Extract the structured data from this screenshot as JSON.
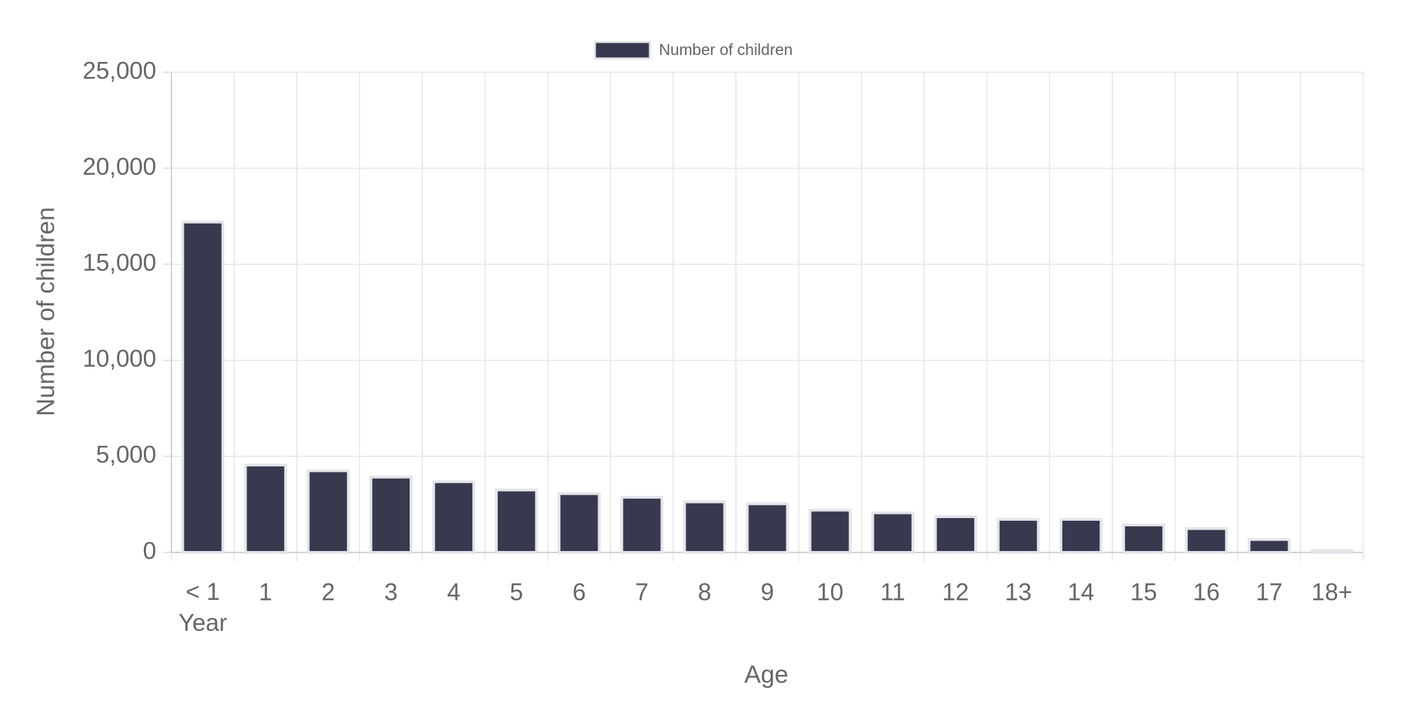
{
  "chart_data": {
    "type": "bar",
    "categories": [
      "< 1 Year",
      "1",
      "2",
      "3",
      "4",
      "5",
      "6",
      "7",
      "8",
      "9",
      "10",
      "11",
      "12",
      "13",
      "14",
      "15",
      "16",
      "17",
      "18+"
    ],
    "series": [
      {
        "name": "Number of children",
        "color": "#373a4f",
        "values": [
          17200,
          4550,
          4250,
          3920,
          3680,
          3250,
          3060,
          2870,
          2630,
          2530,
          2200,
          2060,
          1860,
          1720,
          1720,
          1430,
          1240,
          670,
          100
        ]
      }
    ],
    "x_label": "Age",
    "y_label": "Number of children",
    "ylim": [
      0,
      25000
    ],
    "yticks": [
      0,
      {
        "value": 5000,
        "label": "5,000"
      },
      {
        "value": 10000,
        "label": "10,000"
      },
      {
        "value": 15000,
        "label": "15,000"
      },
      {
        "value": 20000,
        "label": "20,000"
      },
      {
        "value": 25000,
        "label": "25,000"
      }
    ],
    "grid": true,
    "legend": "top"
  }
}
